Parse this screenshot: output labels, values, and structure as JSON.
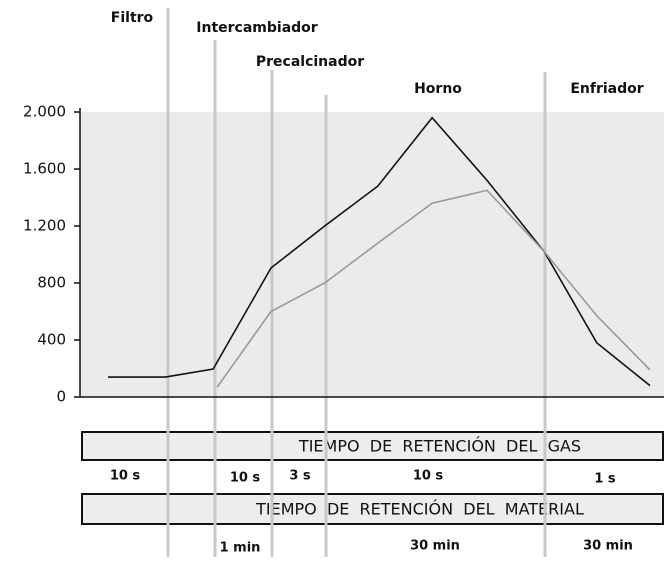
{
  "chart_data": {
    "type": "line",
    "xlim": [
      0,
      100
    ],
    "ylim": [
      0,
      2000
    ],
    "yticks": [
      0,
      400,
      800,
      {
        "value": 1200,
        "label": "1.200"
      },
      {
        "value": 1600,
        "label": "1.600"
      },
      {
        "value": 2000,
        "label": "2.000"
      }
    ],
    "series": [
      {
        "color": "#111111",
        "x": [
          4.8,
          14.6,
          22.8,
          32.7,
          41.9,
          51,
          60.3,
          69.7,
          79.5,
          88.5,
          97.6
        ],
        "values": [
          140,
          140,
          196,
          905,
          1200,
          1480,
          1960,
          1520,
          1020,
          380,
          80
        ]
      },
      {
        "color": "#999999",
        "x": [
          23.5,
          32.7,
          41.9,
          51,
          60.3,
          69.7,
          79.5,
          88.5,
          97.6
        ],
        "values": [
          70,
          600,
          800,
          1080,
          1360,
          1450,
          1020,
          570,
          190
        ]
      }
    ],
    "sections": [
      "Filtro",
      "Intercambiador",
      "Precalcinador",
      "Horno",
      "Enfriador"
    ],
    "gas_retention": {
      "title": "TIEMPO  DE  RETENCIÓN  DEL  GAS",
      "times": [
        "10 s",
        "10 s",
        "3 s",
        "10 s",
        "1 s"
      ]
    },
    "material_retention": {
      "title": "TIEMPO  DE  RETENCIÓN  DEL  MATERIAL",
      "times": [
        "1 min",
        "30 min",
        "30 min"
      ]
    }
  }
}
